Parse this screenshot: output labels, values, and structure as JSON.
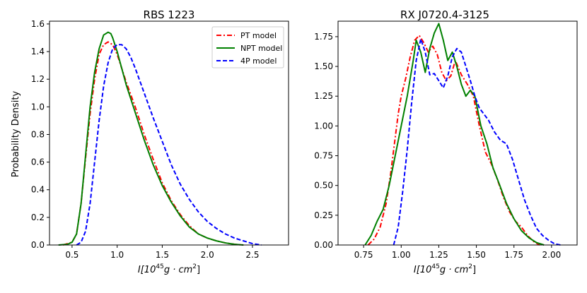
{
  "chart_data": [
    {
      "type": "line",
      "title": "RBS 1223",
      "xlabel_main": "I[10",
      "xlabel_sup1": "45",
      "xlabel_mid": "g · cm",
      "xlabel_sup2": "2",
      "xlabel_end": "]",
      "ylabel": "Probability Density",
      "xlim": [
        0.25,
        2.9
      ],
      "ylim": [
        0.0,
        1.62
      ],
      "xticks": [
        0.5,
        1.0,
        1.5,
        2.0,
        2.5
      ],
      "xtick_labels": [
        "0.5",
        "1.0",
        "1.5",
        "2.0",
        "2.5"
      ],
      "yticks": [
        0.0,
        0.2,
        0.4,
        0.6,
        0.8,
        1.0,
        1.2,
        1.4,
        1.6
      ],
      "ytick_labels": [
        "0.0",
        "0.2",
        "0.4",
        "0.6",
        "0.8",
        "1.0",
        "1.2",
        "1.4",
        "1.6"
      ],
      "legend": {
        "position": "top-right",
        "entries": [
          {
            "label": "PT model",
            "color": "#ff0000",
            "style": "dashdot"
          },
          {
            "label": "NPT model",
            "color": "#008000",
            "style": "solid"
          },
          {
            "label": "4P model",
            "color": "#0000ff",
            "style": "dashed"
          }
        ]
      },
      "series": [
        {
          "name": "PT model",
          "color": "#ff0000",
          "style": "dashdot",
          "x": [
            0.4,
            0.5,
            0.55,
            0.6,
            0.65,
            0.7,
            0.75,
            0.8,
            0.85,
            0.9,
            0.95,
            1.0,
            1.05,
            1.1,
            1.2,
            1.3,
            1.4,
            1.5,
            1.6,
            1.7,
            1.8,
            1.9,
            2.0,
            2.1,
            2.2,
            2.3,
            2.4
          ],
          "y": [
            0.0,
            0.02,
            0.08,
            0.3,
            0.63,
            0.95,
            1.2,
            1.38,
            1.45,
            1.47,
            1.45,
            1.38,
            1.28,
            1.18,
            1.0,
            0.8,
            0.62,
            0.45,
            0.32,
            0.22,
            0.14,
            0.08,
            0.05,
            0.03,
            0.015,
            0.005,
            0.0
          ]
        },
        {
          "name": "NPT model",
          "color": "#008000",
          "style": "solid",
          "x": [
            0.35,
            0.45,
            0.5,
            0.55,
            0.6,
            0.65,
            0.7,
            0.75,
            0.8,
            0.85,
            0.9,
            0.93,
            0.95,
            1.0,
            1.05,
            1.1,
            1.2,
            1.3,
            1.4,
            1.5,
            1.6,
            1.7,
            1.8,
            1.9,
            2.0,
            2.1,
            2.2,
            2.3,
            2.4
          ],
          "y": [
            0.0,
            0.005,
            0.02,
            0.08,
            0.3,
            0.65,
            1.0,
            1.25,
            1.42,
            1.52,
            1.54,
            1.53,
            1.5,
            1.4,
            1.28,
            1.16,
            0.96,
            0.76,
            0.58,
            0.43,
            0.31,
            0.21,
            0.13,
            0.08,
            0.05,
            0.03,
            0.015,
            0.005,
            0.0
          ]
        },
        {
          "name": "4P model",
          "color": "#0000ff",
          "style": "dashed",
          "x": [
            0.55,
            0.6,
            0.65,
            0.7,
            0.75,
            0.8,
            0.85,
            0.9,
            0.95,
            1.0,
            1.05,
            1.1,
            1.15,
            1.2,
            1.3,
            1.4,
            1.5,
            1.6,
            1.7,
            1.8,
            1.9,
            2.0,
            2.1,
            2.2,
            2.3,
            2.4,
            2.5,
            2.6
          ],
          "y": [
            0.0,
            0.02,
            0.1,
            0.3,
            0.6,
            0.9,
            1.15,
            1.32,
            1.42,
            1.45,
            1.45,
            1.42,
            1.36,
            1.28,
            1.1,
            0.92,
            0.75,
            0.58,
            0.44,
            0.33,
            0.24,
            0.17,
            0.12,
            0.08,
            0.05,
            0.03,
            0.01,
            0.0
          ]
        }
      ]
    },
    {
      "type": "line",
      "title": "RX J0720.4-3125",
      "xlabel_main": "I[10",
      "xlabel_sup1": "45",
      "xlabel_mid": "g · cm",
      "xlabel_sup2": "2",
      "xlabel_end": "]",
      "ylabel": "",
      "xlim": [
        0.58,
        2.17
      ],
      "ylim": [
        0.0,
        1.88
      ],
      "xticks": [
        0.75,
        1.0,
        1.25,
        1.5,
        1.75,
        2.0
      ],
      "xtick_labels": [
        "0.75",
        "1.00",
        "1.25",
        "1.50",
        "1.75",
        "2.00"
      ],
      "yticks": [
        0.0,
        0.25,
        0.5,
        0.75,
        1.0,
        1.25,
        1.5,
        1.75
      ],
      "ytick_labels": [
        "0.00",
        "0.25",
        "0.50",
        "0.75",
        "1.00",
        "1.25",
        "1.50",
        "1.75"
      ],
      "series": [
        {
          "name": "PT model",
          "color": "#ff0000",
          "style": "dashdot",
          "x": [
            0.78,
            0.82,
            0.86,
            0.9,
            0.93,
            0.96,
            0.98,
            1.0,
            1.03,
            1.06,
            1.09,
            1.12,
            1.15,
            1.18,
            1.21,
            1.24,
            1.27,
            1.3,
            1.33,
            1.36,
            1.4,
            1.44,
            1.48,
            1.52,
            1.56,
            1.6,
            1.64,
            1.68,
            1.72,
            1.76,
            1.8,
            1.84,
            1.88,
            1.92
          ],
          "y": [
            0.0,
            0.05,
            0.15,
            0.35,
            0.6,
            0.9,
            1.1,
            1.25,
            1.4,
            1.58,
            1.72,
            1.76,
            1.7,
            1.62,
            1.67,
            1.6,
            1.45,
            1.38,
            1.42,
            1.55,
            1.43,
            1.35,
            1.25,
            1.0,
            0.78,
            0.68,
            0.55,
            0.4,
            0.28,
            0.2,
            0.15,
            0.08,
            0.03,
            0.0
          ]
        },
        {
          "name": "NPT model",
          "color": "#008000",
          "style": "solid",
          "x": [
            0.76,
            0.8,
            0.84,
            0.88,
            0.92,
            0.96,
            1.0,
            1.04,
            1.08,
            1.1,
            1.13,
            1.16,
            1.19,
            1.22,
            1.25,
            1.28,
            1.31,
            1.34,
            1.37,
            1.4,
            1.43,
            1.46,
            1.49,
            1.53,
            1.57,
            1.61,
            1.65,
            1.7,
            1.75,
            1.8,
            1.85,
            1.9,
            1.95
          ],
          "y": [
            0.0,
            0.08,
            0.2,
            0.3,
            0.5,
            0.75,
            1.0,
            1.25,
            1.55,
            1.72,
            1.62,
            1.45,
            1.65,
            1.78,
            1.86,
            1.72,
            1.55,
            1.62,
            1.5,
            1.35,
            1.25,
            1.3,
            1.25,
            1.0,
            0.85,
            0.65,
            0.52,
            0.35,
            0.22,
            0.12,
            0.06,
            0.02,
            0.0
          ]
        },
        {
          "name": "4P model",
          "color": "#0000ff",
          "style": "dashed",
          "x": [
            0.95,
            0.98,
            1.01,
            1.04,
            1.07,
            1.1,
            1.13,
            1.16,
            1.19,
            1.22,
            1.25,
            1.28,
            1.31,
            1.34,
            1.37,
            1.4,
            1.43,
            1.46,
            1.49,
            1.52,
            1.55,
            1.58,
            1.62,
            1.66,
            1.7,
            1.74,
            1.78,
            1.82,
            1.86,
            1.9,
            1.94,
            1.98,
            2.02,
            2.06
          ],
          "y": [
            0.0,
            0.15,
            0.45,
            0.8,
            1.2,
            1.55,
            1.73,
            1.62,
            1.43,
            1.44,
            1.38,
            1.32,
            1.42,
            1.58,
            1.65,
            1.62,
            1.5,
            1.38,
            1.25,
            1.15,
            1.1,
            1.05,
            0.95,
            0.88,
            0.85,
            0.72,
            0.55,
            0.38,
            0.25,
            0.14,
            0.08,
            0.04,
            0.01,
            0.0
          ]
        }
      ]
    }
  ]
}
